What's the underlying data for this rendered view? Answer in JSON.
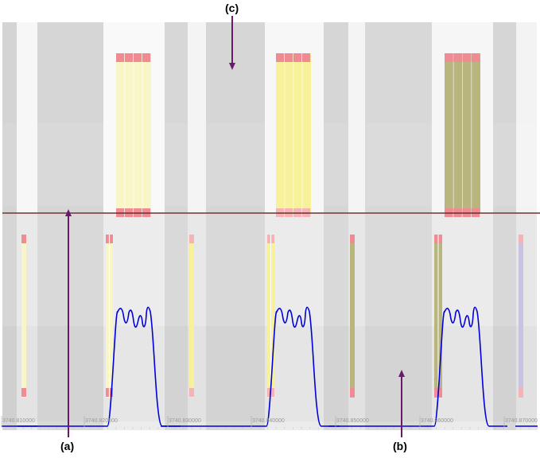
{
  "callouts": {
    "a": "(a)",
    "b": "(b)",
    "c": "(c)"
  },
  "axis_ticks": [
    "3740.810000",
    "3740.820000",
    "3740.830000",
    "3740.840000",
    "3740.850000",
    "3740.860000",
    "3740.870000"
  ],
  "colors": {
    "marker_pink": "#f08a93",
    "light_pink": "#f6b3b6",
    "yellow_strong": "#f7f19a",
    "yellow_pale": "#f8f5c6",
    "olive": "#b9b57e",
    "lavender": "#c9c2e0",
    "curve_blue": "#0000dd",
    "divider": "#6b2e2e",
    "arrow_purple": "#6b1a6b"
  }
}
